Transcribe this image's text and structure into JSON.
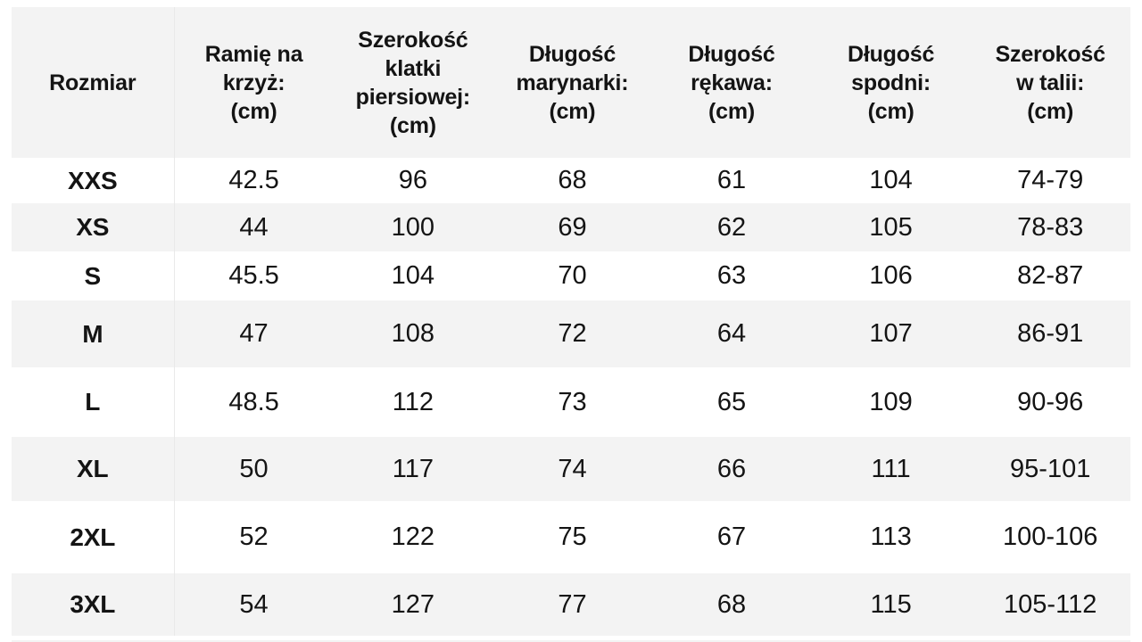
{
  "table": {
    "columns": [
      {
        "id": "rozmiar",
        "label": "Rozmiar",
        "lines": [
          "Rozmiar"
        ]
      },
      {
        "id": "ramie-na-krzyz",
        "label": "Ramię na krzyż: (cm)",
        "lines": [
          "Ramię na",
          "krzyż:",
          "(cm)"
        ]
      },
      {
        "id": "szerokosc-klatki",
        "label": "Szerokość klatki piersiowej: (cm)",
        "lines": [
          "Szerokość",
          "klatki",
          "piersiowej:",
          "(cm)"
        ]
      },
      {
        "id": "dlugosc-marynarki",
        "label": "Długość marynarki: (cm)",
        "lines": [
          "Długość",
          "marynarki:",
          "(cm)"
        ]
      },
      {
        "id": "dlugosc-rekawa",
        "label": "Długość rękawa: (cm)",
        "lines": [
          "Długość",
          "rękawa:",
          "(cm)"
        ]
      },
      {
        "id": "dlugosc-spodni",
        "label": "Długość spodni: (cm)",
        "lines": [
          "Długość",
          "spodni:",
          "(cm)"
        ]
      },
      {
        "id": "szerokosc-w-talii",
        "label": "Szerokość w talii: (cm)",
        "lines": [
          "Szerokość",
          "w talii:",
          "(cm)"
        ]
      }
    ],
    "rows": [
      {
        "size": "XXS",
        "values": [
          "42.5",
          "96",
          "68",
          "61",
          "104",
          "74-79"
        ]
      },
      {
        "size": "XS",
        "values": [
          "44",
          "100",
          "69",
          "62",
          "105",
          "78-83"
        ]
      },
      {
        "size": "S",
        "values": [
          "45.5",
          "104",
          "70",
          "63",
          "106",
          "82-87"
        ]
      },
      {
        "size": "M",
        "values": [
          "47",
          "108",
          "72",
          "64",
          "107",
          "86-91"
        ]
      },
      {
        "size": "L",
        "values": [
          "48.5",
          "112",
          "73",
          "65",
          "109",
          "90-96"
        ]
      },
      {
        "size": "XL",
        "values": [
          "50",
          "117",
          "74",
          "66",
          "111",
          "95-101"
        ]
      },
      {
        "size": "2XL",
        "values": [
          "52",
          "122",
          "75",
          "67",
          "113",
          "100-106"
        ]
      },
      {
        "size": "3XL",
        "values": [
          "54",
          "127",
          "77",
          "68",
          "115",
          "105-112"
        ]
      }
    ]
  },
  "colors": {
    "page_bg": "#ffffff",
    "header_bg": "#f3f3f3",
    "row_alt_bg": "#f3f3f3",
    "divider": "#e9e9e9",
    "text": "#141414"
  }
}
